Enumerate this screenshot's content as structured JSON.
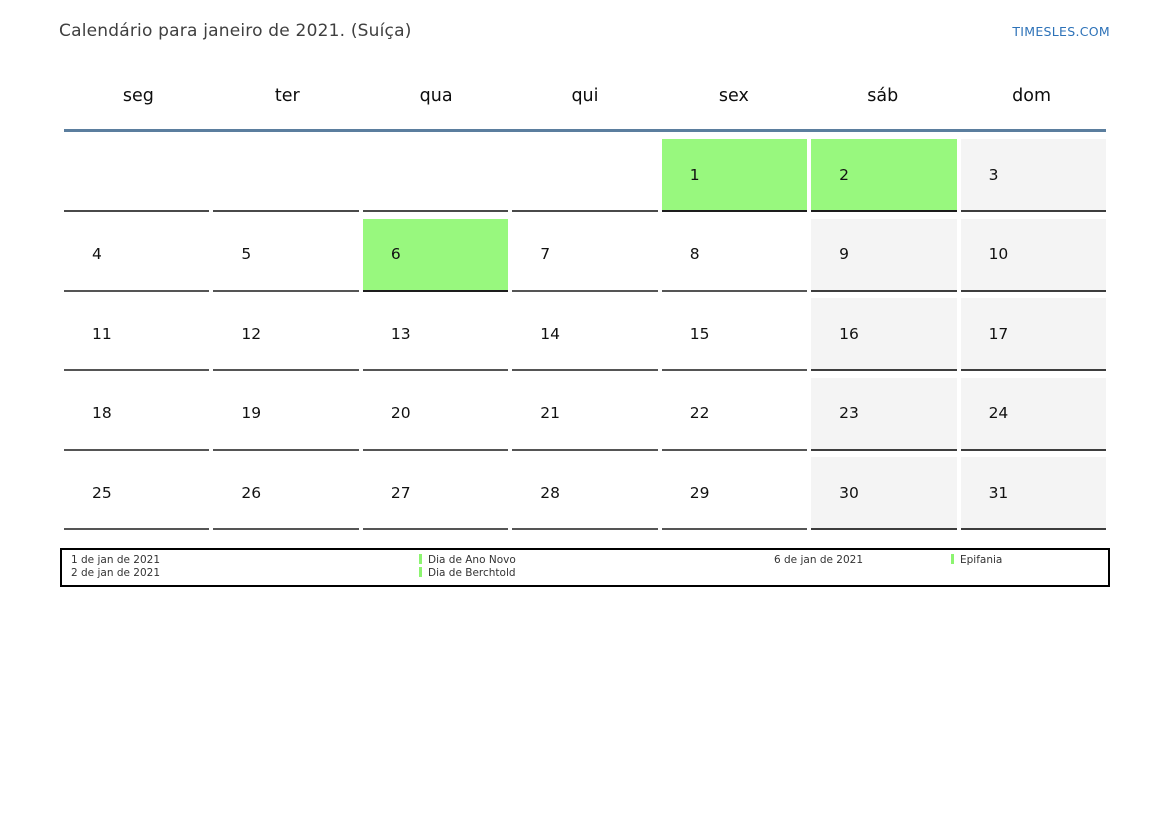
{
  "header": {
    "title": "Calendário para janeiro de 2021. (Suíça)",
    "brand": "TIMESLES.COM"
  },
  "calendar": {
    "weekdays": [
      "seg",
      "ter",
      "qua",
      "qui",
      "sex",
      "sáb",
      "dom"
    ],
    "weeks": [
      [
        {
          "day": "",
          "type": "empty"
        },
        {
          "day": "",
          "type": "empty"
        },
        {
          "day": "",
          "type": "empty"
        },
        {
          "day": "",
          "type": "empty"
        },
        {
          "day": "1",
          "type": "holiday"
        },
        {
          "day": "2",
          "type": "holiday"
        },
        {
          "day": "3",
          "type": "weekend"
        }
      ],
      [
        {
          "day": "4",
          "type": "weekday"
        },
        {
          "day": "5",
          "type": "weekday"
        },
        {
          "day": "6",
          "type": "holiday"
        },
        {
          "day": "7",
          "type": "weekday"
        },
        {
          "day": "8",
          "type": "weekday"
        },
        {
          "day": "9",
          "type": "weekend"
        },
        {
          "day": "10",
          "type": "weekend"
        }
      ],
      [
        {
          "day": "11",
          "type": "weekday"
        },
        {
          "day": "12",
          "type": "weekday"
        },
        {
          "day": "13",
          "type": "weekday"
        },
        {
          "day": "14",
          "type": "weekday"
        },
        {
          "day": "15",
          "type": "weekday"
        },
        {
          "day": "16",
          "type": "weekend"
        },
        {
          "day": "17",
          "type": "weekend"
        }
      ],
      [
        {
          "day": "18",
          "type": "weekday"
        },
        {
          "day": "19",
          "type": "weekday"
        },
        {
          "day": "20",
          "type": "weekday"
        },
        {
          "day": "21",
          "type": "weekday"
        },
        {
          "day": "22",
          "type": "weekday"
        },
        {
          "day": "23",
          "type": "weekend"
        },
        {
          "day": "24",
          "type": "weekend"
        }
      ],
      [
        {
          "day": "25",
          "type": "weekday"
        },
        {
          "day": "26",
          "type": "weekday"
        },
        {
          "day": "27",
          "type": "weekday"
        },
        {
          "day": "28",
          "type": "weekday"
        },
        {
          "day": "29",
          "type": "weekday"
        },
        {
          "day": "30",
          "type": "weekend"
        },
        {
          "day": "31",
          "type": "weekend"
        }
      ]
    ]
  },
  "legend": {
    "columns": [
      {
        "dates": [
          "1 de jan de 2021",
          "2 de jan de 2021"
        ],
        "holidays": [
          "Dia de Ano Novo",
          "Dia de Berchtold"
        ]
      },
      {
        "dates": [
          "6 de jan de 2021"
        ],
        "holidays": [
          "Epifania"
        ]
      }
    ]
  },
  "colors": {
    "holiday_cell": "#98f87e",
    "weekend_cell": "#f4f4f4",
    "header_rule": "#5b7e9e",
    "brand_text": "#2d72b8",
    "legend_marker": "#8cf470"
  }
}
